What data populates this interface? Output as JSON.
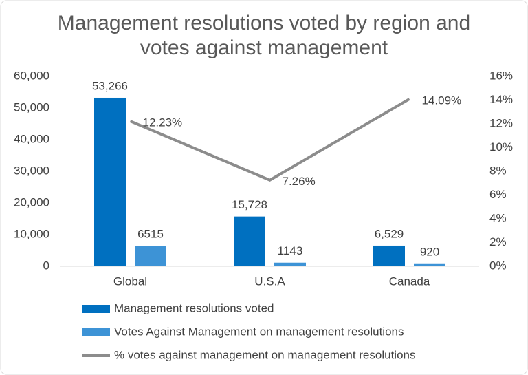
{
  "chart_data": {
    "type": "bar",
    "title": "Management resolutions voted by region and votes against management",
    "categories": [
      "Global",
      "U.S.A",
      "Canada"
    ],
    "series": [
      {
        "name": "Management resolutions voted",
        "color": "#0070c0",
        "type": "bar",
        "values": [
          53266,
          15728,
          6529
        ],
        "value_labels": [
          "53,266",
          "15,728",
          "6,529"
        ]
      },
      {
        "name": "Votes Against Management on management resolutions",
        "color": "#3d93d6",
        "type": "bar",
        "values": [
          6515,
          1143,
          920
        ]
      },
      {
        "name": "% votes against management on management resolutions",
        "color": "#8c8c8c",
        "type": "line",
        "axis": "y2",
        "values": [
          12.23,
          7.26,
          14.09
        ],
        "value_labels": [
          "12.23%",
          "7.26%",
          "14.09%"
        ]
      }
    ],
    "ylim": [
      0,
      60000
    ],
    "yticks": [
      0,
      {
        "value": 10000,
        "label": "10,000"
      },
      {
        "value": 20000,
        "label": "20,000"
      },
      {
        "value": 30000,
        "label": "30,000"
      },
      {
        "value": 40000,
        "label": "40,000"
      },
      {
        "value": 50000,
        "label": "50,000"
      },
      {
        "value": 60000,
        "label": "60,000"
      }
    ],
    "y2lim": [
      0,
      16
    ],
    "y2ticks": [
      {
        "value": 0,
        "label": "0%"
      },
      {
        "value": 2,
        "label": "2%"
      },
      {
        "value": 4,
        "label": "4%"
      },
      {
        "value": 6,
        "label": "6%"
      },
      {
        "value": 8,
        "label": "8%"
      },
      {
        "value": 10,
        "label": "10%"
      },
      {
        "value": 12,
        "label": "12%"
      },
      {
        "value": 14,
        "label": "14%"
      },
      {
        "value": 16,
        "label": "16%"
      }
    ],
    "grid": false,
    "legend": "bottom"
  }
}
